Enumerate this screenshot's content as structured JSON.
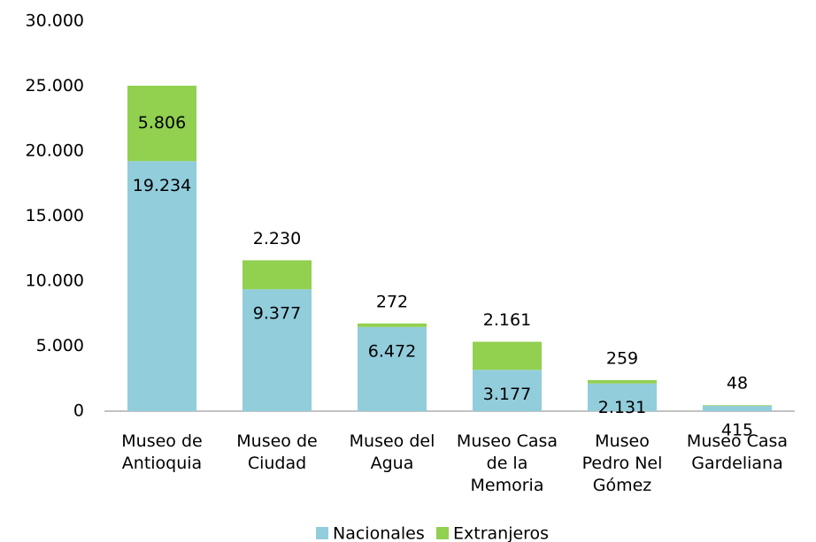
{
  "chart_data": {
    "type": "bar",
    "stacked": true,
    "categories": [
      "Museo de\nAntioquia",
      "Museo de\nCiudad",
      "Museo del\nAgua",
      "Museo Casa\nde la\nMemoria",
      "Museo\nPedro Nel\nGómez",
      "Museo Casa\nGardeliana"
    ],
    "series": [
      {
        "name": "Nacionales",
        "color": "#92cddc",
        "values": [
          19234,
          9377,
          6472,
          3177,
          2131,
          415
        ],
        "value_labels": [
          "19.234",
          "9.377",
          "6.472",
          "3.177",
          "2.131",
          "415"
        ]
      },
      {
        "name": "Extranjeros",
        "color": "#92d050",
        "values": [
          5806,
          2230,
          272,
          2161,
          259,
          48
        ],
        "value_labels": [
          "5.806",
          "2.230",
          "272",
          "2.161",
          "259",
          "48"
        ]
      }
    ],
    "ylim": [
      0,
      30000
    ],
    "yticks": [
      0,
      {
        "value": 5000,
        "label": "5.000"
      },
      {
        "value": 10000,
        "label": "10.000"
      },
      {
        "value": 15000,
        "label": "15.000"
      },
      {
        "value": 20000,
        "label": "20.000"
      },
      {
        "value": 25000,
        "label": "25.000"
      },
      {
        "value": 30000,
        "label": "30.000"
      }
    ],
    "legend": "bottom"
  }
}
